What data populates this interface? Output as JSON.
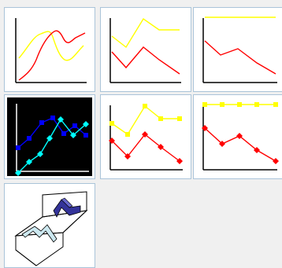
{
  "gallery": {
    "colors": {
      "background": "#f0f0f0",
      "tile_background": "#ffffff",
      "tile_border": "#aac4d9",
      "selected_background": "#000000",
      "series_yellow": "#ffff00",
      "series_red": "#ff0000",
      "series_blue": "#0000ff",
      "series_cyan": "#00ffff",
      "axis": "#000000",
      "axis_selected": "#ffffff",
      "ribbon_dark": "#333399",
      "ribbon_light": "#cce8f0"
    },
    "tiles": [
      {
        "name": "line-subtype-smoothed-icon",
        "selected": false
      },
      {
        "name": "line-subtype-lines-icon",
        "selected": false
      },
      {
        "name": "line-subtype-lines-offset-icon",
        "selected": false
      },
      {
        "name": "line-subtype-markers-dark-icon",
        "selected": true
      },
      {
        "name": "line-subtype-lines-markers-icon",
        "selected": false
      },
      {
        "name": "line-subtype-lines-markers-offset-icon",
        "selected": false
      },
      {
        "name": "line-subtype-3d-ribbon-icon",
        "selected": false
      }
    ]
  }
}
